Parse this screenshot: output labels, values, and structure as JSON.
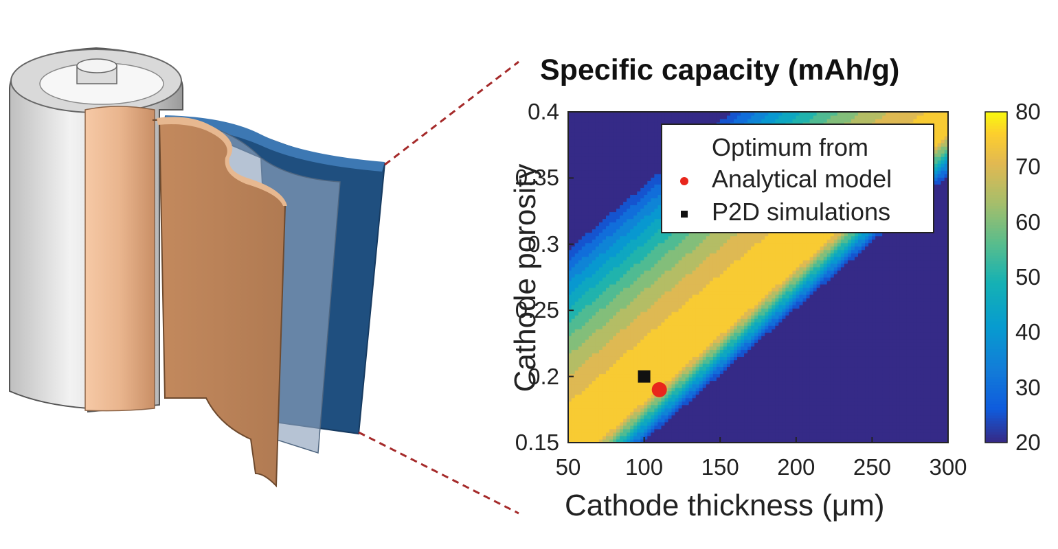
{
  "chart_data": {
    "type": "heatmap",
    "title": "Specific capacity (mAh/g)",
    "xlabel": "Cathode thickness (μm)",
    "ylabel": "Cathode porosity",
    "xlim": [
      50,
      300
    ],
    "ylim": [
      0.15,
      0.4
    ],
    "x_ticks": [
      "50",
      "100",
      "150",
      "200",
      "250",
      "300"
    ],
    "y_ticks": [
      "0.15",
      "0.2",
      "0.25",
      "0.3",
      "0.35",
      "0.4"
    ],
    "colorbar": {
      "range": [
        20,
        80
      ],
      "ticks": [
        "20",
        "30",
        "40",
        "50",
        "60",
        "70",
        "80"
      ],
      "colormap": "parula"
    },
    "legend": {
      "title": "Optimum from",
      "position": "top-right",
      "entries": [
        {
          "label": "Analytical model",
          "marker": "circle",
          "color": "#e8261c"
        },
        {
          "label": "P2D simulations",
          "marker": "square",
          "color": "#111111"
        }
      ]
    },
    "points": [
      {
        "series": "Analytical model",
        "x": 110,
        "y": 0.19
      },
      {
        "series": "P2D simulations",
        "x": 100,
        "y": 0.2
      }
    ],
    "contour_levels": [
      20,
      25,
      30,
      35,
      40,
      45,
      50,
      55,
      60,
      65,
      70,
      75,
      80
    ]
  },
  "colors": {
    "low": "#352a87",
    "high": "#f9fb0e",
    "analytical_marker": "#e8261c",
    "p2d_marker": "#111111",
    "zoom_line": "#a52a2a"
  }
}
